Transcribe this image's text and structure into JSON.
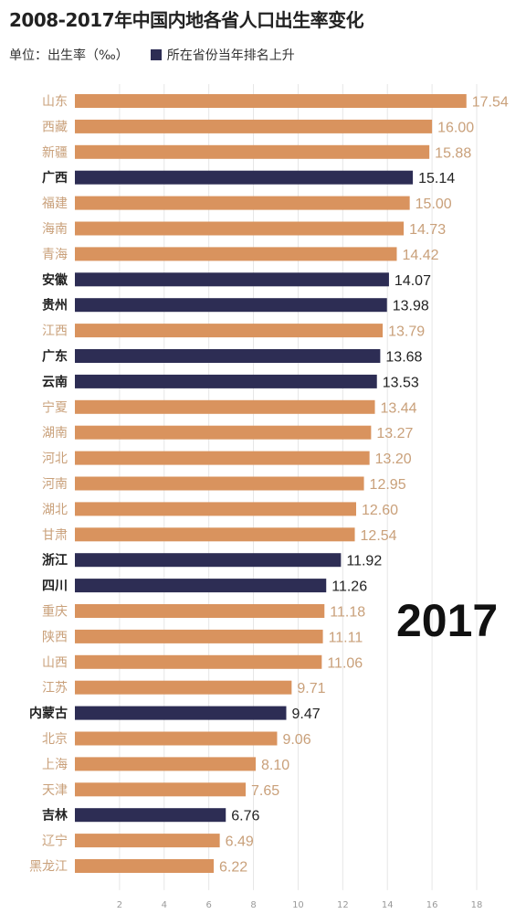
{
  "title": "2008-2017年中国内地各省人口出生率变化",
  "unit_label": "单位：出生率（‰）",
  "legend_label": "所在省份当年排名上升",
  "year_label": "2017",
  "colors": {
    "orange": "#d9935e",
    "navy": "#2d2d54",
    "orange_text": "#c9a07a",
    "navy_text": "#222222",
    "axis_text": "#9a9a9a"
  },
  "chart_data": {
    "type": "bar",
    "orientation": "horizontal",
    "title": "2008-2017年中国内地各省人口出生率变化",
    "xlim": [
      0,
      18
    ],
    "xticks": [
      2,
      4,
      6,
      8,
      10,
      12,
      14,
      16,
      18
    ],
    "grid": true,
    "legend": "所在省份当年排名上升",
    "categories": [
      "山东",
      "西藏",
      "新疆",
      "广西",
      "福建",
      "海南",
      "青海",
      "安徽",
      "贵州",
      "江西",
      "广东",
      "云南",
      "宁夏",
      "湖南",
      "河北",
      "河南",
      "湖北",
      "甘肃",
      "浙江",
      "四川",
      "重庆",
      "陕西",
      "山西",
      "江苏",
      "内蒙古",
      "北京",
      "上海",
      "天津",
      "吉林",
      "辽宁",
      "黑龙江"
    ],
    "values": [
      17.54,
      16.0,
      15.88,
      15.14,
      15.0,
      14.73,
      14.42,
      14.07,
      13.98,
      13.79,
      13.68,
      13.53,
      13.44,
      13.27,
      13.2,
      12.95,
      12.6,
      12.54,
      11.92,
      11.26,
      11.18,
      11.11,
      11.06,
      9.71,
      9.47,
      9.06,
      8.1,
      7.65,
      6.76,
      6.49,
      6.22
    ],
    "value_labels": [
      "17.54",
      "16.00",
      "15.88",
      "15.14",
      "15.00",
      "14.73",
      "14.42",
      "14.07",
      "13.98",
      "13.79",
      "13.68",
      "13.53",
      "13.44",
      "13.27",
      "13.20",
      "12.95",
      "12.60",
      "12.54",
      "11.92",
      "11.26",
      "11.18",
      "11.11",
      "11.06",
      "9.71",
      "9.47",
      "9.06",
      "8.10",
      "7.65",
      "6.76",
      "6.49",
      "6.22"
    ],
    "rank_up": [
      false,
      false,
      false,
      true,
      false,
      false,
      false,
      true,
      true,
      false,
      true,
      true,
      false,
      false,
      false,
      false,
      false,
      false,
      true,
      true,
      false,
      false,
      false,
      false,
      true,
      false,
      false,
      false,
      true,
      false,
      false
    ]
  }
}
